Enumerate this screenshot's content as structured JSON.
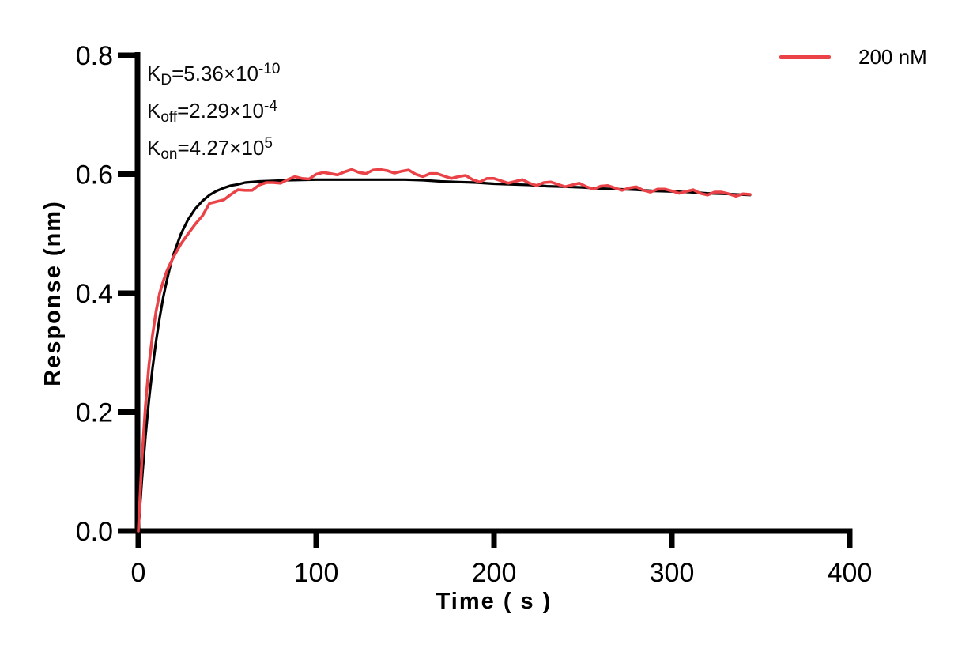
{
  "chart_data": {
    "type": "line",
    "title": "",
    "xlabel": "Time ( s )",
    "ylabel": "Response (nm)",
    "xlim": [
      0,
      400
    ],
    "ylim": [
      0,
      0.8
    ],
    "x_ticks": [
      0,
      100,
      200,
      300,
      400
    ],
    "x_tick_labels": [
      "0",
      "100",
      "200",
      "300",
      "400"
    ],
    "y_ticks": [
      0,
      0.2,
      0.4,
      0.6,
      0.8
    ],
    "y_tick_labels": [
      "0.0",
      "0.2",
      "0.4",
      "0.6",
      "0.8"
    ],
    "grid": false,
    "legend_position": "top-right",
    "legend": {
      "label": "200 nM",
      "color": "#ea4247"
    },
    "axis_color": "#000000",
    "annotations": [
      {
        "pre": "K",
        "sub": "D",
        "mid": "=5.36×10",
        "sup": "-10"
      },
      {
        "pre": "K",
        "sub": "off",
        "mid": "=2.29×10",
        "sup": "-4"
      },
      {
        "pre": "K",
        "sub": "on",
        "mid": "=4.27×10",
        "sup": "5"
      }
    ],
    "series": [
      {
        "name": "fit-curve",
        "color": "#000000",
        "stroke_width": 3.2,
        "points": [
          [
            0,
            0.0
          ],
          [
            2,
            0.085
          ],
          [
            4,
            0.158
          ],
          [
            6,
            0.221
          ],
          [
            8,
            0.274
          ],
          [
            10,
            0.32
          ],
          [
            12,
            0.359
          ],
          [
            14,
            0.393
          ],
          [
            16,
            0.421
          ],
          [
            18,
            0.446
          ],
          [
            20,
            0.467
          ],
          [
            24,
            0.5
          ],
          [
            28,
            0.524
          ],
          [
            32,
            0.542
          ],
          [
            36,
            0.555
          ],
          [
            40,
            0.565
          ],
          [
            44,
            0.572
          ],
          [
            48,
            0.577
          ],
          [
            52,
            0.581
          ],
          [
            56,
            0.583
          ],
          [
            60,
            0.586
          ],
          [
            68,
            0.588
          ],
          [
            76,
            0.589
          ],
          [
            84,
            0.59
          ],
          [
            92,
            0.5905
          ],
          [
            100,
            0.591
          ],
          [
            110,
            0.591
          ],
          [
            120,
            0.591
          ],
          [
            130,
            0.591
          ],
          [
            140,
            0.591
          ],
          [
            150,
            0.591
          ],
          [
            160,
            0.59
          ],
          [
            170,
            0.588
          ],
          [
            180,
            0.587
          ],
          [
            190,
            0.586
          ],
          [
            200,
            0.584
          ],
          [
            210,
            0.583
          ],
          [
            220,
            0.582
          ],
          [
            230,
            0.58
          ],
          [
            240,
            0.579
          ],
          [
            250,
            0.578
          ],
          [
            260,
            0.576
          ],
          [
            270,
            0.575
          ],
          [
            280,
            0.574
          ],
          [
            290,
            0.572
          ],
          [
            300,
            0.571
          ],
          [
            310,
            0.57
          ],
          [
            320,
            0.568
          ],
          [
            330,
            0.567
          ],
          [
            344,
            0.565
          ]
        ]
      },
      {
        "name": "200 nM",
        "color": "#ea4247",
        "stroke_width": 3.6,
        "points": [
          [
            0,
            0.0
          ],
          [
            2,
            0.12
          ],
          [
            4,
            0.21
          ],
          [
            6,
            0.28
          ],
          [
            8,
            0.33
          ],
          [
            10,
            0.37
          ],
          [
            12,
            0.4
          ],
          [
            14,
            0.42
          ],
          [
            16,
            0.437
          ],
          [
            18,
            0.45
          ],
          [
            20,
            0.462
          ],
          [
            24,
            0.483
          ],
          [
            28,
            0.5
          ],
          [
            32,
            0.516
          ],
          [
            36,
            0.53
          ],
          [
            40,
            0.551
          ],
          [
            44,
            0.554
          ],
          [
            48,
            0.557
          ],
          [
            52,
            0.566
          ],
          [
            56,
            0.574
          ],
          [
            60,
            0.573
          ],
          [
            64,
            0.573
          ],
          [
            68,
            0.582
          ],
          [
            72,
            0.586
          ],
          [
            76,
            0.586
          ],
          [
            80,
            0.585
          ],
          [
            84,
            0.591
          ],
          [
            88,
            0.596
          ],
          [
            92,
            0.593
          ],
          [
            96,
            0.592
          ],
          [
            100,
            0.6
          ],
          [
            104,
            0.603
          ],
          [
            108,
            0.601
          ],
          [
            112,
            0.599
          ],
          [
            116,
            0.604
          ],
          [
            120,
            0.608
          ],
          [
            124,
            0.603
          ],
          [
            128,
            0.601
          ],
          [
            132,
            0.607
          ],
          [
            136,
            0.608
          ],
          [
            140,
            0.606
          ],
          [
            144,
            0.602
          ],
          [
            148,
            0.605
          ],
          [
            152,
            0.607
          ],
          [
            156,
            0.6
          ],
          [
            160,
            0.596
          ],
          [
            164,
            0.601
          ],
          [
            168,
            0.601
          ],
          [
            172,
            0.597
          ],
          [
            176,
            0.593
          ],
          [
            180,
            0.596
          ],
          [
            184,
            0.598
          ],
          [
            188,
            0.591
          ],
          [
            192,
            0.587
          ],
          [
            196,
            0.593
          ],
          [
            200,
            0.593
          ],
          [
            204,
            0.589
          ],
          [
            208,
            0.585
          ],
          [
            212,
            0.588
          ],
          [
            216,
            0.591
          ],
          [
            220,
            0.585
          ],
          [
            224,
            0.581
          ],
          [
            228,
            0.586
          ],
          [
            232,
            0.587
          ],
          [
            236,
            0.583
          ],
          [
            240,
            0.579
          ],
          [
            244,
            0.582
          ],
          [
            248,
            0.585
          ],
          [
            252,
            0.579
          ],
          [
            256,
            0.575
          ],
          [
            260,
            0.58
          ],
          [
            264,
            0.581
          ],
          [
            268,
            0.577
          ],
          [
            272,
            0.573
          ],
          [
            276,
            0.577
          ],
          [
            280,
            0.579
          ],
          [
            284,
            0.573
          ],
          [
            288,
            0.57
          ],
          [
            292,
            0.575
          ],
          [
            296,
            0.575
          ],
          [
            300,
            0.572
          ],
          [
            304,
            0.568
          ],
          [
            308,
            0.571
          ],
          [
            312,
            0.574
          ],
          [
            316,
            0.568
          ],
          [
            320,
            0.565
          ],
          [
            324,
            0.57
          ],
          [
            328,
            0.57
          ],
          [
            332,
            0.567
          ],
          [
            336,
            0.563
          ],
          [
            340,
            0.567
          ],
          [
            344,
            0.566
          ]
        ]
      }
    ]
  }
}
